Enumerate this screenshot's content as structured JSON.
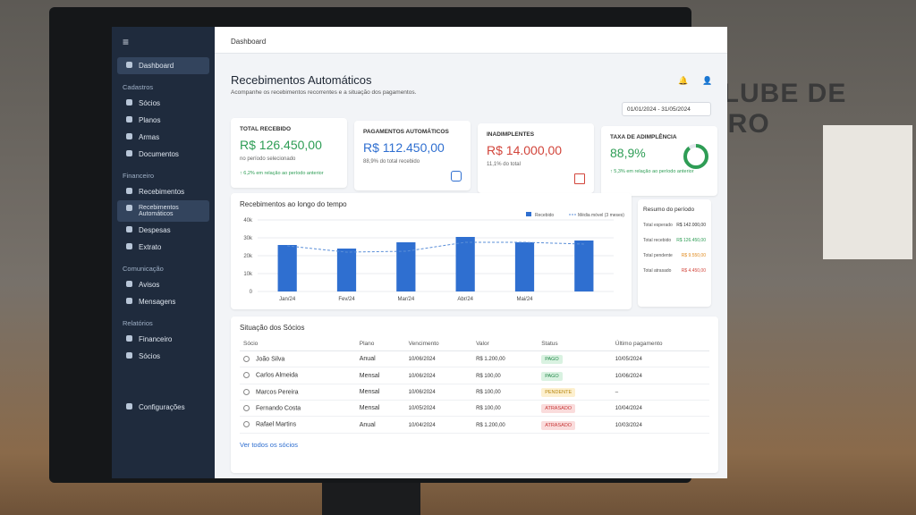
{
  "background": {
    "sign": "CLUBE DE TIRO"
  },
  "sidebar": {
    "dashboard": "Dashboard",
    "groups": [
      {
        "title": "Cadastros",
        "items": [
          "Sócios",
          "Planos",
          "Armas",
          "Documentos"
        ]
      },
      {
        "title": "Financeiro",
        "items": [
          "Recebimentos",
          "Recebimentos Automáticos",
          "Despesas",
          "Extrato"
        ]
      },
      {
        "title": "Comunicação",
        "items": [
          "Avisos",
          "Mensagens"
        ]
      },
      {
        "title": "Relatórios",
        "items": [
          "Financeiro",
          "Sócios"
        ]
      }
    ],
    "settings": "Configurações"
  },
  "header": {
    "breadcrumb": "Dashboard",
    "title": "Recebimentos Automáticos",
    "subtitle": "Acompanhe os recebimentos recorrentes e a situação dos pagamentos.",
    "date_range": "01/01/2024 - 31/05/2024"
  },
  "cards": [
    {
      "title": "TOTAL RECEBIDO",
      "value": "R$ 126.450,00",
      "note": "no período selecionado",
      "trend": "↑ 6,2% em relação ao período anterior"
    },
    {
      "title": "PAGAMENTOS AUTOMÁTICOS",
      "value": "R$ 112.450,00",
      "note": "88,9% do total recebido"
    },
    {
      "title": "INADIMPLENTES",
      "value": "R$ 14.000,00",
      "note": "11,1% do total"
    },
    {
      "title": "TAXA DE ADIMPLÊNCIA",
      "value": "88,9%",
      "gauge": 88.9,
      "trend": "↑ 5,3% em relação ao período anterior"
    }
  ],
  "chart": {
    "type": "bar",
    "title": "Recebimentos ao longo do tempo",
    "categories": [
      "Jan/24",
      "Fev/24",
      "Mar/24",
      "Abr/24",
      "Mai/24",
      null
    ],
    "series": [
      {
        "name": "Recebido",
        "type": "bar",
        "color": "#2f6fd0",
        "values": [
          26000,
          24000,
          27500,
          30500,
          27500,
          28500
        ]
      },
      {
        "name": "Média móvel (3 meses)",
        "type": "line",
        "color": "#5b8fd8",
        "values": [
          25500,
          22000,
          22500,
          27500,
          27500,
          26500
        ]
      }
    ],
    "ylim": [
      0,
      40000
    ],
    "yticks": [
      0,
      {
        "value": 10000,
        "label": "10k"
      },
      {
        "value": 20000,
        "label": "20k"
      },
      {
        "value": 30000,
        "label": "30k"
      },
      {
        "value": 40000,
        "label": "40k"
      }
    ],
    "grid": true
  },
  "summary": {
    "title": "Resumo do período",
    "rows": [
      [
        "Total esperado",
        "R$ 142.000,00"
      ],
      [
        "Total recebido",
        "R$ 126.450,00"
      ],
      [
        "Total pendente",
        "R$ 9.550,00"
      ],
      [
        "Total atrasado",
        "R$ 4.450,00"
      ]
    ]
  },
  "table": {
    "title": "Situação dos Sócios",
    "columns": [
      "Sócio",
      "Plano",
      "Vencimento",
      "Valor",
      "Status",
      "Último pagamento"
    ],
    "rows": [
      [
        "João Silva",
        "Anual",
        "10/06/2024",
        "R$ 1.200,00",
        "PAGO",
        "10/05/2024"
      ],
      [
        "Carlos Almeida",
        "Mensal",
        "10/06/2024",
        "R$ 100,00",
        "PAGO",
        "10/06/2024"
      ],
      [
        "Marcos Pereira",
        "Mensal",
        "10/06/2024",
        "R$ 100,00",
        "PENDENTE",
        "–"
      ],
      [
        "Fernando Costa",
        "Mensal",
        "10/05/2024",
        "R$ 100,00",
        "ATRASADO",
        "10/04/2024"
      ],
      [
        "Rafael Martins",
        "Anual",
        "10/04/2024",
        "R$ 1.200,00",
        "ATRASADO",
        "10/03/2024"
      ]
    ],
    "link": "Ver todos os sócios"
  }
}
